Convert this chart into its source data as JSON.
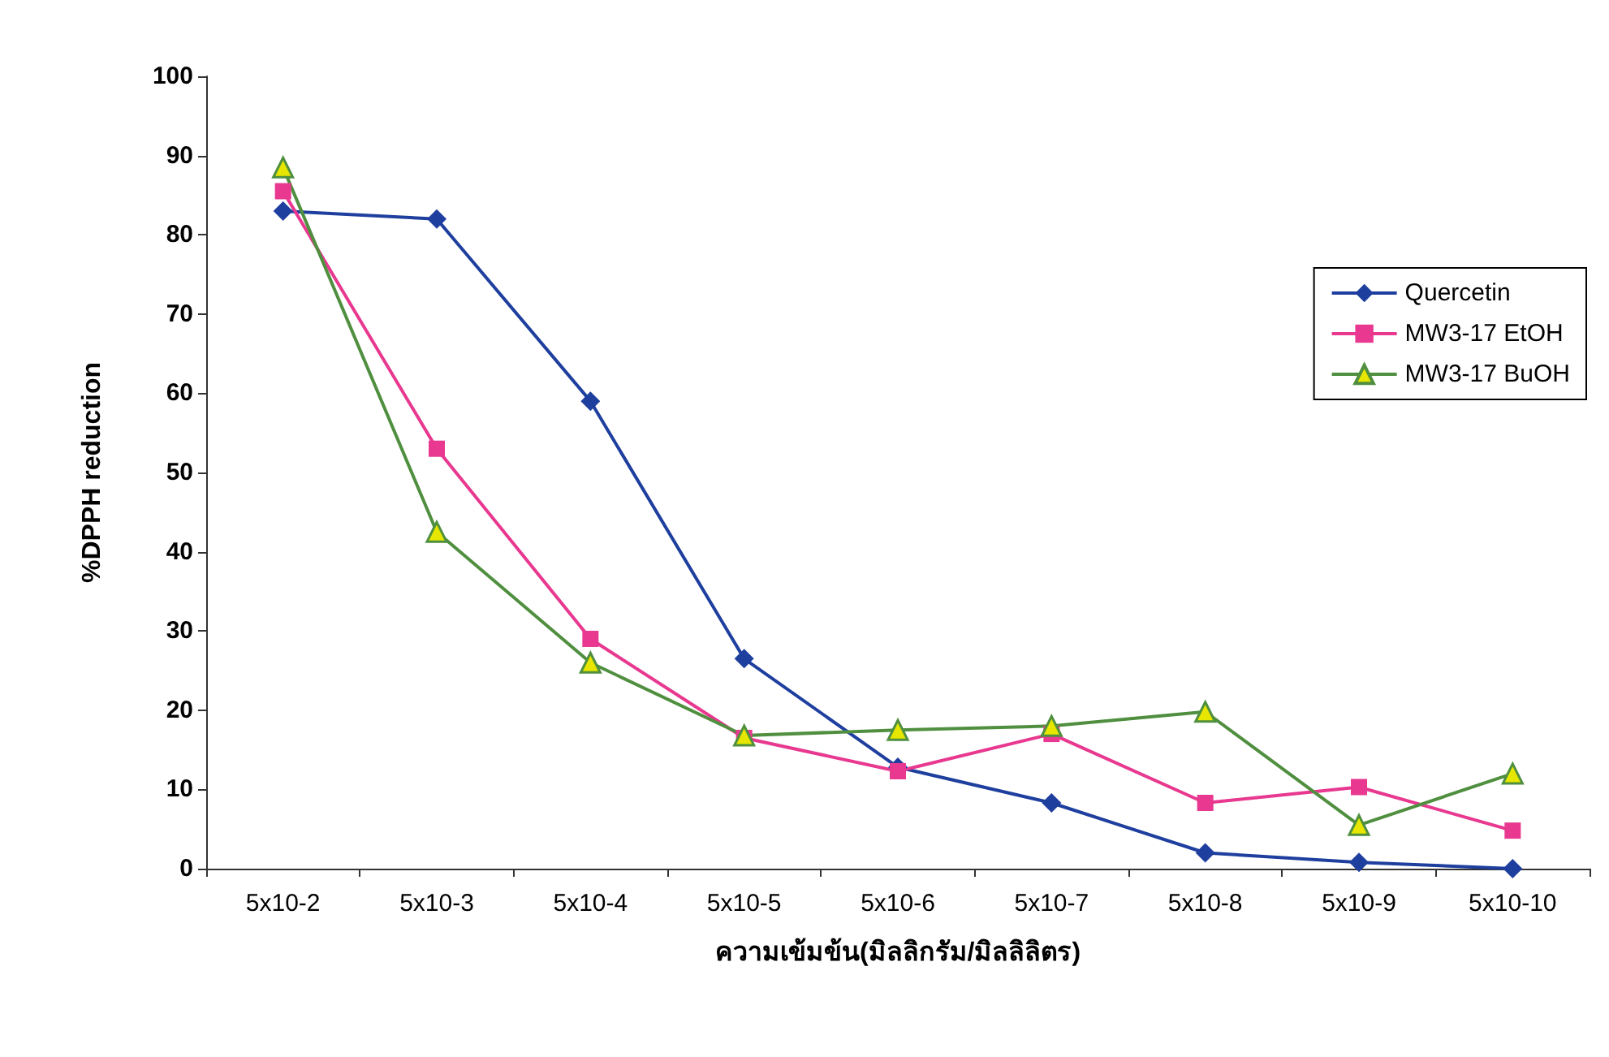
{
  "chart_data": {
    "type": "line",
    "xlabel": "ความเข้มข้น(มิลลิกรัม/มิลลิลิตร)",
    "ylabel": "%DPPH reduction",
    "categories": [
      "5x10-2",
      "5x10-3",
      "5x10-4",
      "5x10-5",
      "5x10-6",
      "5x10-7",
      "5x10-8",
      "5x10-9",
      "5x10-10"
    ],
    "series": [
      {
        "name": "Quercetin",
        "color": "#1f3f9f",
        "marker": "diamond",
        "values": [
          83,
          82,
          59,
          26.5,
          12.8,
          8.3,
          2,
          0.8,
          0
        ]
      },
      {
        "name": "MW3-17 EtOH",
        "color": "#e8388f",
        "marker": "square",
        "values": [
          85.5,
          53,
          29,
          16.5,
          12.3,
          17,
          8.3,
          10.3,
          4.8
        ]
      },
      {
        "name": "MW3-17 BuOH",
        "color": "#4f8f3f",
        "marker": "triangle",
        "values": [
          88.5,
          42.5,
          26,
          16.8,
          17.5,
          18,
          19.8,
          5.5,
          12
        ]
      }
    ],
    "ylim": [
      0,
      100
    ],
    "yticks": [
      0,
      10,
      20,
      30,
      40,
      50,
      60,
      70,
      80,
      90,
      100
    ],
    "grid": false,
    "legend": "right",
    "line_style": "solid"
  }
}
